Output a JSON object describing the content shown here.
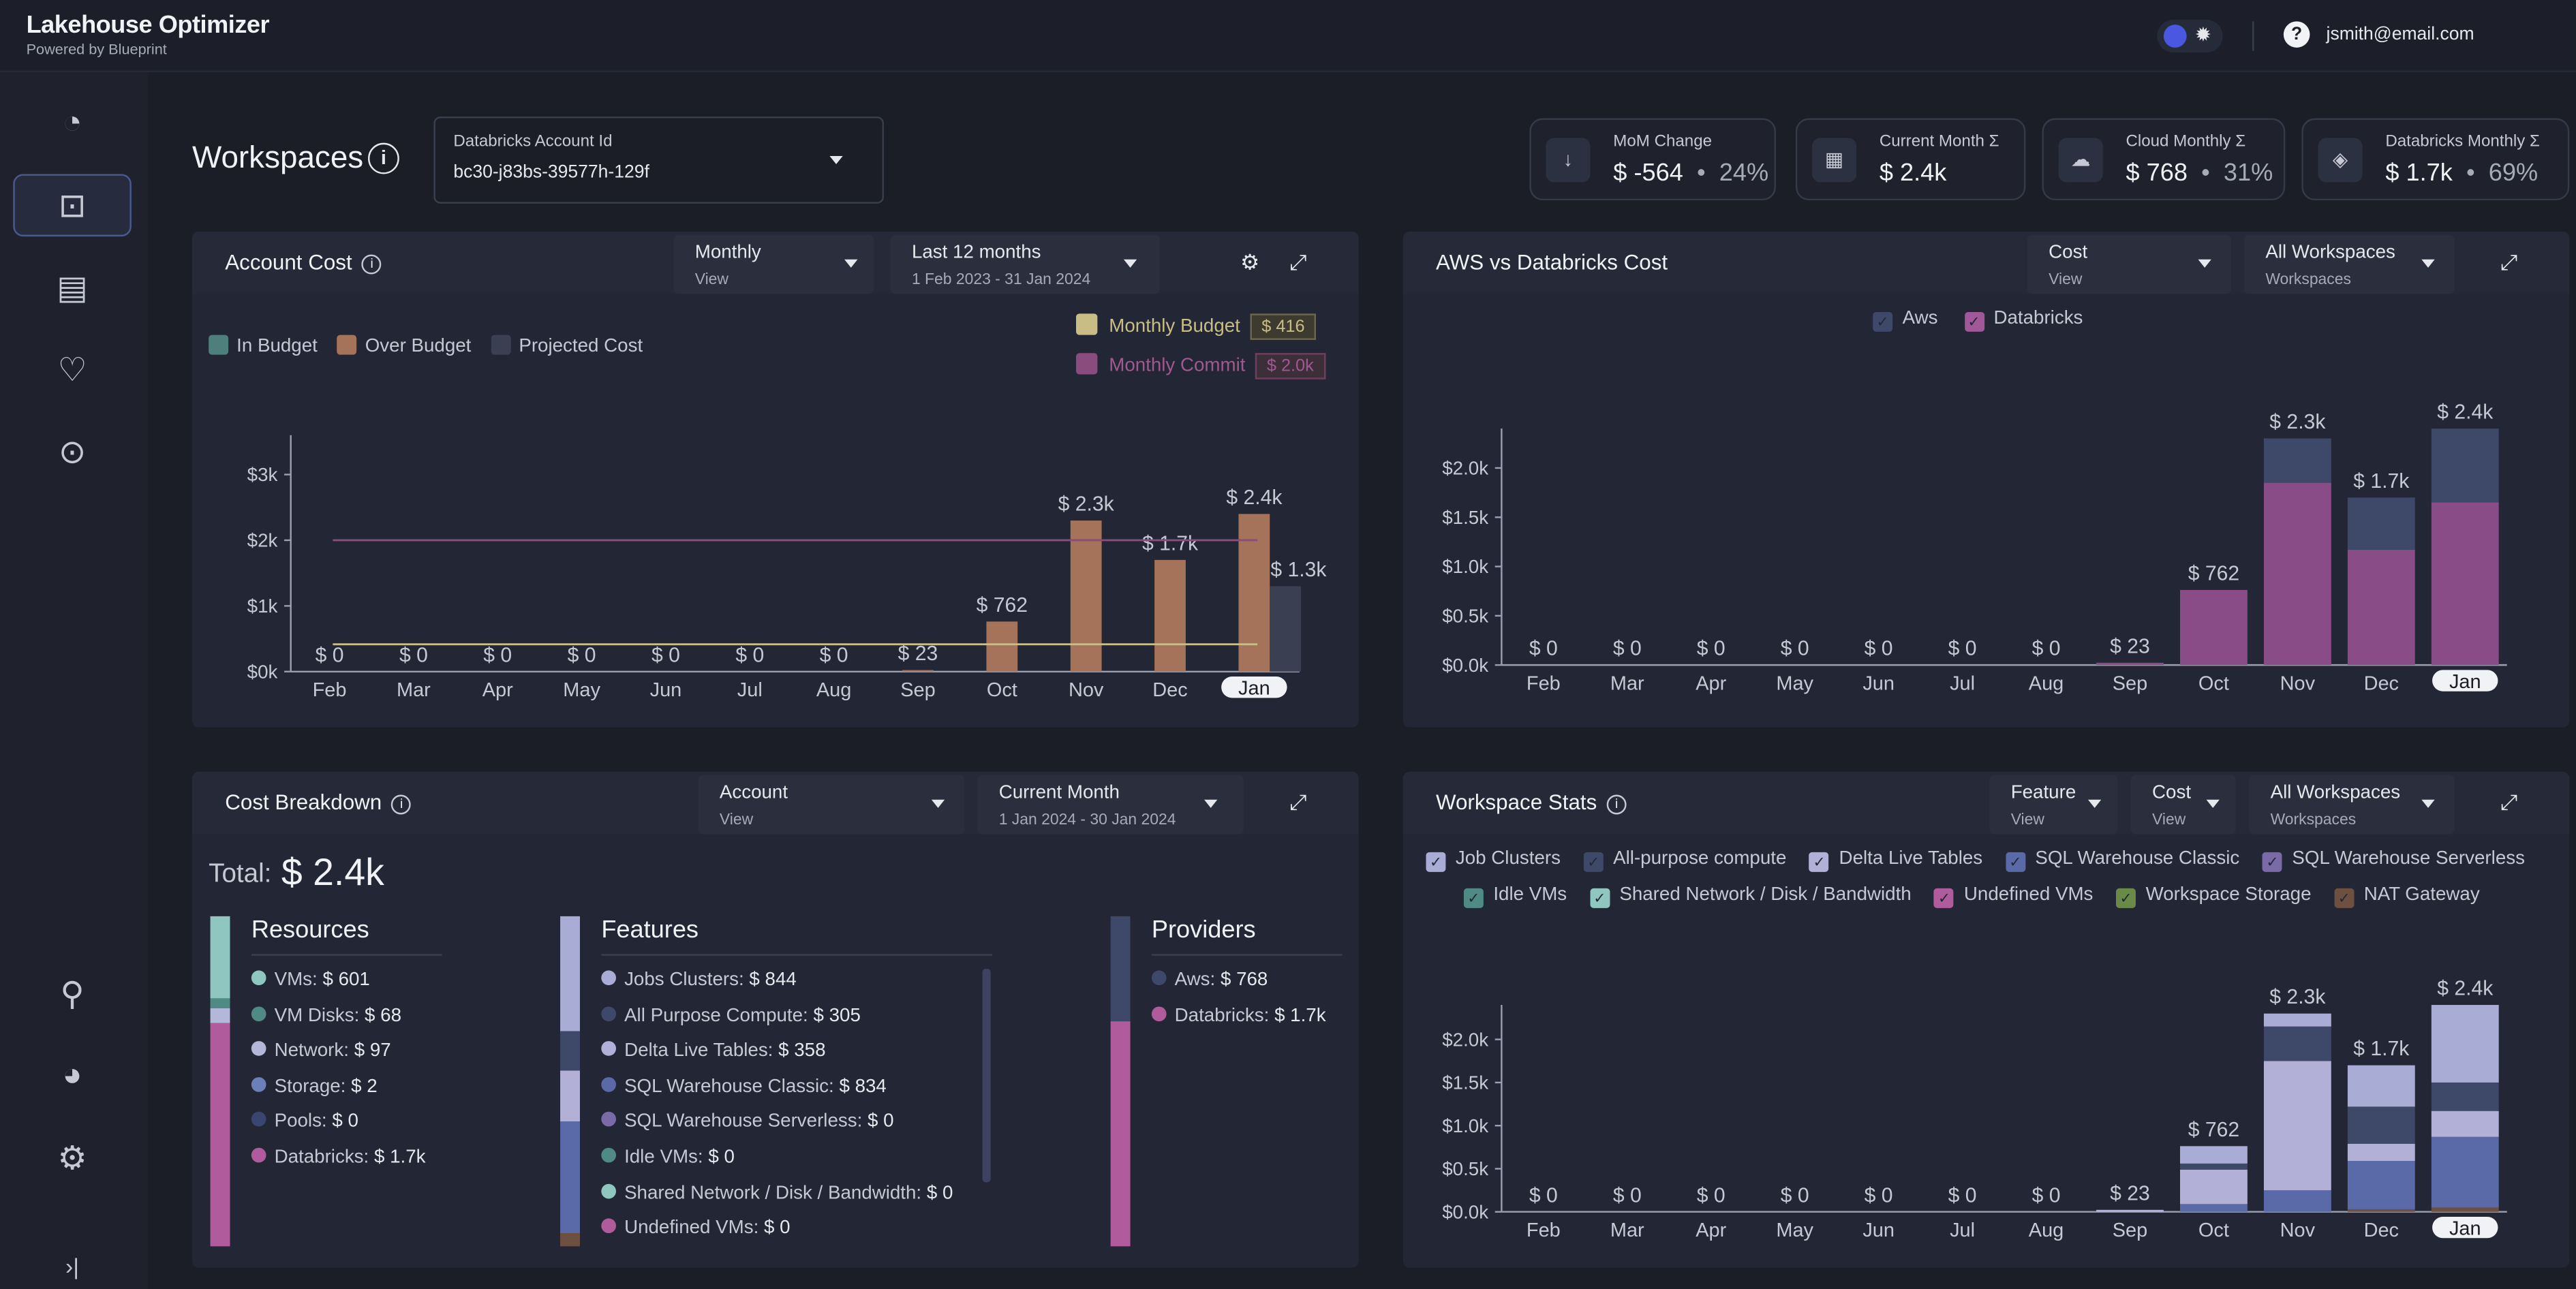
{
  "app": {
    "title": "Lakehouse Optimizer",
    "powered": "Powered by Blueprint",
    "user": "jsmith@email.com"
  },
  "sidebar": {
    "items": [
      {
        "name": "dashboard-icon",
        "glyph": "◔"
      },
      {
        "name": "workspaces-icon",
        "glyph": "⊡"
      },
      {
        "name": "reports-icon",
        "glyph": "▤"
      },
      {
        "name": "health-icon",
        "glyph": "♡"
      },
      {
        "name": "recommendations-icon",
        "glyph": "⊙"
      },
      {
        "name": "tools-icon",
        "glyph": "⚲"
      },
      {
        "name": "usage-icon",
        "glyph": "◕"
      },
      {
        "name": "settings-icon",
        "glyph": "⚙"
      },
      {
        "name": "expand-icon",
        "glyph": "›|"
      }
    ]
  },
  "page": {
    "title": "Workspaces",
    "account_label": "Databricks Account Id",
    "account_value": "bc30-j83bs-39577h-129f"
  },
  "kpis": [
    {
      "label": "MoM Change",
      "value": "$ -564",
      "pct": "24%",
      "icon": "arrow-down-icon"
    },
    {
      "label": "Current Month Σ",
      "value": "$ 2.4k",
      "pct": "",
      "icon": "calendar-icon"
    },
    {
      "label": "Cloud Monthly Σ",
      "value": "$ 768",
      "pct": "31%",
      "icon": "cloud-icon"
    },
    {
      "label": "Databricks Monthly Σ",
      "value": "$ 1.7k",
      "pct": "69%",
      "icon": "layers-icon"
    }
  ],
  "account_cost": {
    "title": "Account Cost",
    "view": {
      "value": "Monthly",
      "sub": "View"
    },
    "range": {
      "value": "Last 12 months",
      "sub": "1 Feb 2023 - 31 Jan 2024"
    },
    "legend": [
      "In Budget",
      "Over Budget",
      "Projected Cost"
    ],
    "budget": {
      "label": "Monthly Budget",
      "value": "$ 416"
    },
    "commit": {
      "label": "Monthly Commit",
      "value": "$ 2.0k"
    }
  },
  "aws_vs_db": {
    "title": "AWS vs Databricks Cost",
    "view": {
      "value": "Cost",
      "sub": "View"
    },
    "ws": {
      "value": "All Workspaces",
      "sub": "Workspaces"
    },
    "legend": [
      "Aws",
      "Databricks"
    ]
  },
  "breakdown": {
    "title": "Cost Breakdown",
    "view": {
      "value": "Account",
      "sub": "View"
    },
    "range": {
      "value": "Current Month",
      "sub": "1 Jan 2024 - 30 Jan 2024"
    },
    "total_label": "Total:",
    "total_value": "$ 2.4k",
    "resources": {
      "title": "Resources",
      "items": [
        {
          "label": "VMs:",
          "value": "$ 601",
          "color": "#8fc7c0"
        },
        {
          "label": "VM Disks:",
          "value": "$ 68",
          "color": "#4f8a84"
        },
        {
          "label": "Network:",
          "value": "$ 97",
          "color": "#b3b8d8"
        },
        {
          "label": "Storage:",
          "value": "$ 2",
          "color": "#6b7fb8"
        },
        {
          "label": "Pools:",
          "value": "$ 0",
          "color": "#3a4670"
        },
        {
          "label": "Databricks:",
          "value": "$ 1.7k",
          "color": "#b05c9c"
        }
      ]
    },
    "features": {
      "title": "Features",
      "items": [
        {
          "label": "Jobs Clusters:",
          "value": "$ 844",
          "color": "#a9acd4"
        },
        {
          "label": "All Purpose Compute:",
          "value": "$ 305",
          "color": "#3e4868"
        },
        {
          "label": "Delta Live Tables:",
          "value": "$ 358",
          "color": "#b3b0d8"
        },
        {
          "label": "SQL Warehouse Classic:",
          "value": "$ 834",
          "color": "#5a6aa8"
        },
        {
          "label": "SQL Warehouse Serverless:",
          "value": "$ 0",
          "color": "#7a6aa8"
        },
        {
          "label": "Idle VMs:",
          "value": "$ 0",
          "color": "#4f8a84"
        },
        {
          "label": "Shared Network / Disk / Bandwidth:",
          "value": "$ 0",
          "color": "#8fc7c0"
        },
        {
          "label": "Undefined VMs:",
          "value": "$ 0",
          "color": "#b05c9c"
        }
      ]
    },
    "providers": {
      "title": "Providers",
      "items": [
        {
          "label": "Aws:",
          "value": "$ 768",
          "color": "#3e4868"
        },
        {
          "label": "Databricks:",
          "value": "$ 1.7k",
          "color": "#b05c9c"
        }
      ]
    }
  },
  "ws_stats": {
    "title": "Workspace Stats",
    "feature": {
      "value": "Feature",
      "sub": "View"
    },
    "view": {
      "value": "Cost",
      "sub": "View"
    },
    "ws": {
      "value": "All Workspaces",
      "sub": "Workspaces"
    },
    "legend1": [
      {
        "label": "Job Clusters",
        "color": "#a9acd4"
      },
      {
        "label": "All-purpose compute",
        "color": "#3e4868"
      },
      {
        "label": "Delta Live Tables",
        "color": "#b3b0d8"
      },
      {
        "label": "SQL Warehouse Classic",
        "color": "#5a6aa8"
      },
      {
        "label": "SQL Warehouse Serverless",
        "color": "#7a6aa8"
      }
    ],
    "legend2": [
      {
        "label": "Idle VMs",
        "color": "#4f8a84"
      },
      {
        "label": "Shared Network / Disk / Bandwidth",
        "color": "#8fc7c0"
      },
      {
        "label": "Undefined VMs",
        "color": "#b05c9c"
      },
      {
        "label": "Workspace Storage",
        "color": "#6b8a4a"
      },
      {
        "label": "NAT Gateway",
        "color": "#6e5040"
      }
    ]
  },
  "chart_data": [
    {
      "type": "bar",
      "title": "Account Cost",
      "categories": [
        "Feb",
        "Mar",
        "Apr",
        "May",
        "Jun",
        "Jul",
        "Aug",
        "Sep",
        "Oct",
        "Nov",
        "Dec",
        "Jan"
      ],
      "values": [
        0,
        0,
        0,
        0,
        0,
        0,
        0,
        23,
        762,
        2300,
        1700,
        2400
      ],
      "projected": [
        null,
        null,
        null,
        null,
        null,
        null,
        null,
        null,
        null,
        null,
        null,
        1300
      ],
      "value_labels": [
        "$ 0",
        "$ 0",
        "$ 0",
        "$ 0",
        "$ 0",
        "$ 0",
        "$ 0",
        "$ 23",
        "$ 762",
        "$ 2.3k",
        "$ 1.7k",
        "$ 2.4k"
      ],
      "projected_label": "$ 1.3k",
      "yticks": [
        {
          "v": 0,
          "t": "$0k"
        },
        {
          "v": 1000,
          "t": "$1k"
        },
        {
          "v": 2000,
          "t": "$2k"
        },
        {
          "v": 3000,
          "t": "$3k"
        }
      ],
      "ylim": [
        0,
        3600
      ],
      "lines": [
        {
          "name": "Monthly Budget",
          "value": 416,
          "color": "#c9bd86"
        },
        {
          "name": "Monthly Commit",
          "value": 2000,
          "color": "#8a4c7c"
        }
      ],
      "colors": {
        "over": "#a5725a",
        "projected": "#3a3f52"
      }
    },
    {
      "type": "bar",
      "title": "AWS vs Databricks Cost",
      "categories": [
        "Feb",
        "Mar",
        "Apr",
        "May",
        "Jun",
        "Jul",
        "Aug",
        "Sep",
        "Oct",
        "Nov",
        "Dec",
        "Jan"
      ],
      "series": [
        {
          "name": "Databricks",
          "values": [
            0,
            0,
            0,
            0,
            0,
            0,
            0,
            23,
            762,
            1850,
            1170,
            1650
          ],
          "color": "#8a4c86"
        },
        {
          "name": "Aws",
          "values": [
            0,
            0,
            0,
            0,
            0,
            0,
            0,
            0,
            0,
            450,
            530,
            750
          ],
          "color": "#3e4868"
        }
      ],
      "value_labels": [
        "$ 0",
        "$ 0",
        "$ 0",
        "$ 0",
        "$ 0",
        "$ 0",
        "$ 0",
        "$ 23",
        "$ 762",
        "$ 2.3k",
        "$ 1.7k",
        "$ 2.4k"
      ],
      "yticks": [
        {
          "v": 0,
          "t": "$0.0k"
        },
        {
          "v": 500,
          "t": "$0.5k"
        },
        {
          "v": 1000,
          "t": "$1.0k"
        },
        {
          "v": 1500,
          "t": "$1.5k"
        },
        {
          "v": 2000,
          "t": "$2.0k"
        }
      ],
      "ylim": [
        0,
        2400
      ]
    },
    {
      "type": "bar",
      "title": "Workspace Stats",
      "categories": [
        "Feb",
        "Mar",
        "Apr",
        "May",
        "Jun",
        "Jul",
        "Aug",
        "Sep",
        "Oct",
        "Nov",
        "Dec",
        "Jan"
      ],
      "series": [
        {
          "name": "NAT Gateway",
          "values": [
            0,
            0,
            0,
            0,
            0,
            0,
            0,
            0,
            0,
            0,
            30,
            50
          ],
          "color": "#6e5040"
        },
        {
          "name": "SQL Warehouse Classic",
          "values": [
            0,
            0,
            0,
            0,
            0,
            0,
            0,
            0,
            90,
            250,
            560,
            820
          ],
          "color": "#5a6aa8"
        },
        {
          "name": "Delta Live Tables",
          "values": [
            0,
            0,
            0,
            0,
            0,
            0,
            0,
            23,
            400,
            1500,
            200,
            300
          ],
          "color": "#b3b0d8"
        },
        {
          "name": "All-purpose compute",
          "values": [
            0,
            0,
            0,
            0,
            0,
            0,
            0,
            0,
            70,
            400,
            430,
            330
          ],
          "color": "#3e4868"
        },
        {
          "name": "Job Clusters",
          "values": [
            0,
            0,
            0,
            0,
            0,
            0,
            0,
            0,
            202,
            150,
            480,
            900
          ],
          "color": "#a9acd4"
        }
      ],
      "value_labels": [
        "$ 0",
        "$ 0",
        "$ 0",
        "$ 0",
        "$ 0",
        "$ 0",
        "$ 0",
        "$ 23",
        "$ 762",
        "$ 2.3k",
        "$ 1.7k",
        "$ 2.4k"
      ],
      "yticks": [
        {
          "v": 0,
          "t": "$0.0k"
        },
        {
          "v": 500,
          "t": "$0.5k"
        },
        {
          "v": 1000,
          "t": "$1.0k"
        },
        {
          "v": 1500,
          "t": "$1.5k"
        },
        {
          "v": 2000,
          "t": "$2.0k"
        }
      ],
      "ylim": [
        0,
        2400
      ]
    }
  ]
}
